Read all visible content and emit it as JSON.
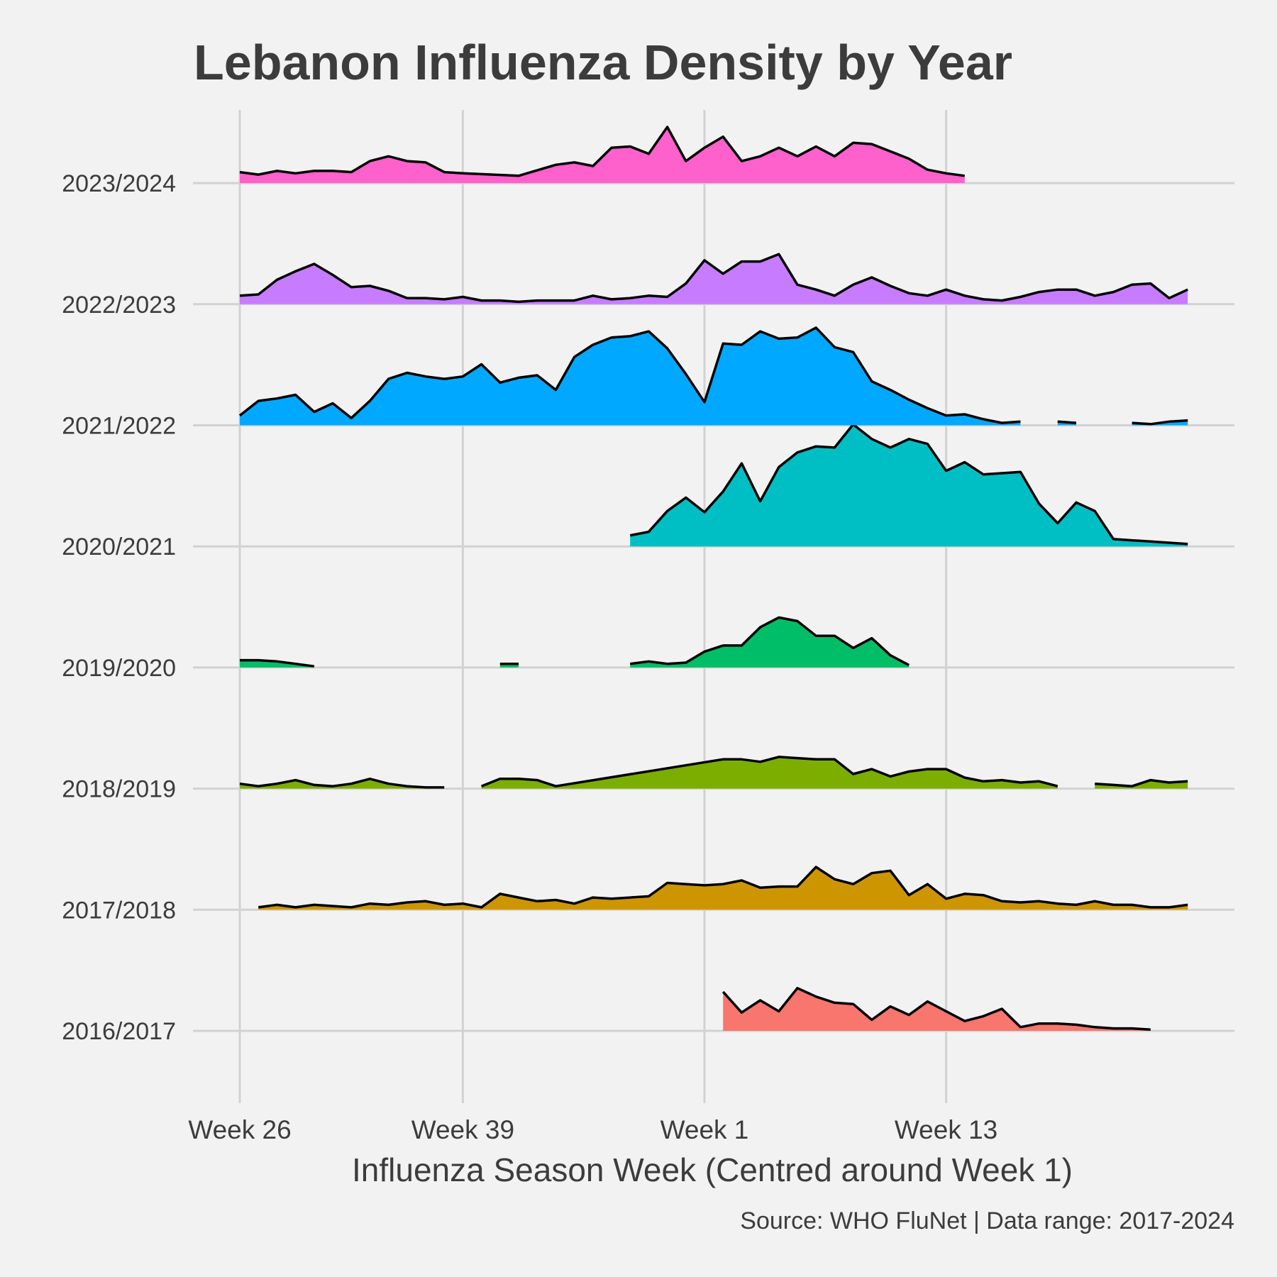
{
  "chart_data": {
    "type": "area",
    "subtype": "ridgeline",
    "title": "Lebanon Influenza Density by Year",
    "xlabel": "Influenza Season Week (Centred around Week 1)",
    "caption": "Source: WHO FluNet | Data range: 2017-2024",
    "x_ticks": [
      {
        "label": "Week 26",
        "pos": 0
      },
      {
        "label": "Week 39",
        "pos": 12
      },
      {
        "label": "Week 1",
        "pos": 25
      },
      {
        "label": "Week 13",
        "pos": 38
      }
    ],
    "x_range": [
      -3,
      53
    ],
    "grid": true,
    "legend": "none",
    "series": [
      {
        "name": "2016/2017",
        "color": "#f8766d",
        "x": [
          26,
          27,
          28,
          29,
          30,
          31,
          32,
          33,
          34,
          35,
          36,
          37,
          38,
          39,
          40,
          41,
          42,
          43,
          44,
          45,
          46,
          47,
          48,
          49
        ],
        "y": [
          0.32,
          0.15,
          0.25,
          0.16,
          0.35,
          0.28,
          0.23,
          0.22,
          0.09,
          0.2,
          0.13,
          0.24,
          0.16,
          0.08,
          0.12,
          0.18,
          0.03,
          0.06,
          0.06,
          0.05,
          0.03,
          0.02,
          0.02,
          0.01
        ]
      },
      {
        "name": "2017/2018",
        "color": "#cd9600",
        "x": [
          1,
          2,
          3,
          4,
          5,
          6,
          7,
          8,
          9,
          10,
          11,
          12,
          13,
          14,
          15,
          16,
          17,
          18,
          19,
          20,
          21,
          22,
          23,
          24,
          25,
          26,
          27,
          28,
          29,
          30,
          31,
          32,
          33,
          34,
          35,
          36,
          37,
          38,
          39,
          40,
          41,
          42,
          43,
          44,
          45,
          46,
          47,
          48,
          49,
          50,
          51
        ],
        "y": [
          0.02,
          0.04,
          0.02,
          0.04,
          0.03,
          0.02,
          0.05,
          0.04,
          0.06,
          0.07,
          0.04,
          0.05,
          0.02,
          0.13,
          0.1,
          0.07,
          0.08,
          0.05,
          0.1,
          0.09,
          0.1,
          0.11,
          0.22,
          0.21,
          0.2,
          0.21,
          0.24,
          0.18,
          0.19,
          0.19,
          0.35,
          0.25,
          0.21,
          0.3,
          0.32,
          0.12,
          0.21,
          0.09,
          0.13,
          0.12,
          0.07,
          0.06,
          0.07,
          0.05,
          0.04,
          0.07,
          0.04,
          0.04,
          0.02,
          0.02,
          0.04
        ]
      },
      {
        "name": "2018/2019",
        "color": "#7cae00",
        "x": [
          0,
          1,
          2,
          3,
          4,
          5,
          6,
          7,
          8,
          9,
          10,
          11
        ],
        "y": [
          0.04,
          0.02,
          0.04,
          0.07,
          0.03,
          0.02,
          0.04,
          0.08,
          0.04,
          0.02,
          0.01,
          0.01
        ],
        "x2": [
          13,
          14,
          15,
          16,
          17,
          26,
          27,
          28,
          29,
          30,
          31,
          32,
          33,
          34,
          35,
          36,
          37,
          38,
          39,
          40,
          41,
          42,
          43,
          44
        ],
        "y2": [
          0.02,
          0.08,
          0.08,
          0.07,
          0.02,
          0.24,
          0.24,
          0.22,
          0.26,
          0.25,
          0.24,
          0.24,
          0.12,
          0.16,
          0.1,
          0.14,
          0.16,
          0.16,
          0.09,
          0.06,
          0.07,
          0.05,
          0.06,
          0.02
        ],
        "x3": [
          46,
          47,
          48,
          49,
          50,
          51
        ],
        "y3": [
          0.04,
          0.03,
          0.02,
          0.07,
          0.05,
          0.06
        ]
      },
      {
        "name": "2019/2020",
        "color": "#00be67",
        "x": [
          0,
          1,
          2,
          3,
          4
        ],
        "y": [
          0.06,
          0.06,
          0.05,
          0.03,
          0.01
        ],
        "x2": [
          14,
          15
        ],
        "y2": [
          0.03,
          0.03
        ],
        "x3": [
          21,
          22,
          23,
          24,
          25,
          26,
          27,
          28,
          29,
          30,
          31,
          32,
          33,
          34,
          35,
          36
        ],
        "y3": [
          0.03,
          0.05,
          0.03,
          0.04,
          0.13,
          0.18,
          0.18,
          0.33,
          0.41,
          0.38,
          0.26,
          0.26,
          0.16,
          0.24,
          0.1,
          0.02
        ]
      },
      {
        "name": "2020/2021",
        "color": "#00bfc4",
        "x": [
          21,
          22,
          23,
          24,
          25,
          26,
          27,
          28,
          29,
          30,
          31,
          32,
          33,
          34,
          35,
          36,
          37,
          38,
          39,
          40,
          41,
          42,
          43,
          44,
          45,
          46,
          47,
          48,
          49,
          50,
          51
        ],
        "y": [
          0.09,
          0.12,
          0.29,
          0.4,
          0.28,
          0.45,
          0.68,
          0.37,
          0.65,
          0.77,
          0.82,
          0.81,
          1.0,
          0.88,
          0.81,
          0.88,
          0.84,
          0.62,
          0.69,
          0.59,
          0.6,
          0.61,
          0.35,
          0.19,
          0.36,
          0.29,
          0.06,
          0.05,
          0.04,
          0.03,
          0.02
        ]
      },
      {
        "name": "2021/2022",
        "color": "#00a9ff",
        "x": [
          0,
          1,
          2,
          3,
          4,
          5,
          6,
          7,
          8,
          9,
          10,
          11,
          12,
          13,
          14,
          15,
          16,
          17,
          18,
          19,
          20,
          21,
          22,
          23,
          24,
          25,
          26,
          27,
          28,
          29,
          30,
          31,
          32,
          33,
          34,
          35,
          36,
          37,
          38,
          39,
          40,
          41,
          42
        ],
        "y": [
          0.08,
          0.2,
          0.22,
          0.25,
          0.11,
          0.18,
          0.06,
          0.2,
          0.38,
          0.43,
          0.4,
          0.38,
          0.4,
          0.5,
          0.35,
          0.39,
          0.41,
          0.29,
          0.56,
          0.66,
          0.72,
          0.73,
          0.77,
          0.63,
          0.42,
          0.19,
          0.67,
          0.66,
          0.77,
          0.71,
          0.72,
          0.8,
          0.64,
          0.6,
          0.36,
          0.29,
          0.21,
          0.14,
          0.08,
          0.09,
          0.05,
          0.02,
          0.03
        ],
        "x2": [
          44,
          45
        ],
        "y2": [
          0.03,
          0.02
        ],
        "x3": [
          48,
          49,
          50,
          51
        ],
        "y3": [
          0.02,
          0.01,
          0.03,
          0.04
        ]
      },
      {
        "name": "2022/2023",
        "color": "#c77cff",
        "x": [
          0,
          1,
          2,
          3,
          4,
          5,
          6,
          7,
          8,
          9,
          10,
          11,
          12,
          13,
          14,
          15,
          16,
          17,
          18,
          19,
          20,
          21,
          22,
          23,
          24,
          25,
          26,
          27,
          28,
          29,
          30,
          31,
          32,
          33,
          34,
          35,
          36,
          37,
          38,
          39,
          40,
          41,
          42,
          43,
          44,
          45,
          46,
          47,
          48,
          49,
          50,
          51
        ],
        "y": [
          0.07,
          0.08,
          0.2,
          0.27,
          0.33,
          0.24,
          0.14,
          0.15,
          0.11,
          0.05,
          0.05,
          0.04,
          0.06,
          0.03,
          0.03,
          0.02,
          0.03,
          0.03,
          0.03,
          0.07,
          0.04,
          0.05,
          0.07,
          0.06,
          0.17,
          0.36,
          0.25,
          0.35,
          0.35,
          0.41,
          0.16,
          0.12,
          0.07,
          0.16,
          0.22,
          0.15,
          0.09,
          0.07,
          0.12,
          0.07,
          0.04,
          0.03,
          0.06,
          0.1,
          0.12,
          0.12,
          0.07,
          0.1,
          0.16,
          0.17,
          0.05,
          0.12
        ]
      },
      {
        "name": "2023/2024",
        "color": "#ff61cc",
        "x": [
          0,
          1,
          2,
          3,
          4,
          5,
          6,
          7,
          8,
          9,
          10,
          11,
          12,
          15,
          17,
          18,
          19,
          20,
          21,
          22,
          23,
          24,
          25,
          26,
          27,
          28,
          29,
          30,
          31,
          32,
          33,
          34,
          35,
          36,
          37,
          38,
          39
        ],
        "y": [
          0.09,
          0.07,
          0.1,
          0.08,
          0.1,
          0.1,
          0.09,
          0.18,
          0.22,
          0.18,
          0.17,
          0.09,
          0.08,
          0.06,
          0.15,
          0.17,
          0.14,
          0.29,
          0.3,
          0.24,
          0.46,
          0.18,
          0.29,
          0.38,
          0.18,
          0.22,
          0.29,
          0.22,
          0.3,
          0.22,
          0.33,
          0.32,
          0.26,
          0.2,
          0.11,
          0.08,
          0.06
        ]
      }
    ]
  }
}
